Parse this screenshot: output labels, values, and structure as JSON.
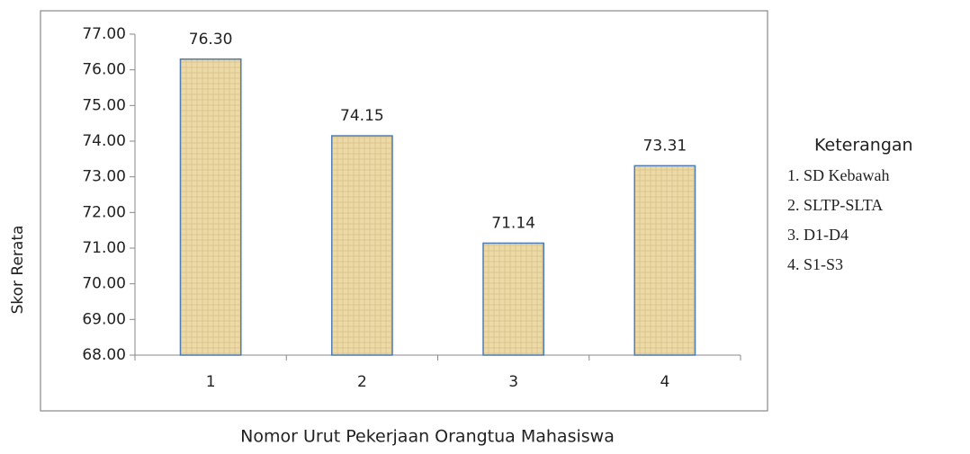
{
  "chart_data": {
    "type": "bar",
    "categories": [
      "1",
      "2",
      "3",
      "4"
    ],
    "values": [
      76.3,
      74.15,
      71.14,
      73.31
    ],
    "value_labels": [
      "76.30",
      "74.15",
      "71.14",
      "73.31"
    ],
    "color": "#ecd9a6",
    "edge_color": "#4f7cb3",
    "ylim": [
      68,
      77
    ],
    "yticks": [
      {
        "value": 68,
        "label": "68.00"
      },
      {
        "value": 69,
        "label": "69.00"
      },
      {
        "value": 70,
        "label": "70.00"
      },
      {
        "value": 71,
        "label": "71.00"
      },
      {
        "value": 72,
        "label": "72.00"
      },
      {
        "value": 73,
        "label": "73.00"
      },
      {
        "value": 74,
        "label": "74.00"
      },
      {
        "value": 75,
        "label": "75.00"
      },
      {
        "value": 76,
        "label": "76.00"
      },
      {
        "value": 77,
        "label": "77.00"
      }
    ],
    "ylabel": "Skor  Rerata",
    "xlabel": "Nomor  Urut  Pekerjaan Orangtua Mahasiswa",
    "legend_title": "Keterangan",
    "legend_items": [
      "1.  SD Kebawah",
      "2.  SLTP-SLTA",
      "3.  D1-D4",
      "4.  S1-S3"
    ],
    "grid": false
  }
}
